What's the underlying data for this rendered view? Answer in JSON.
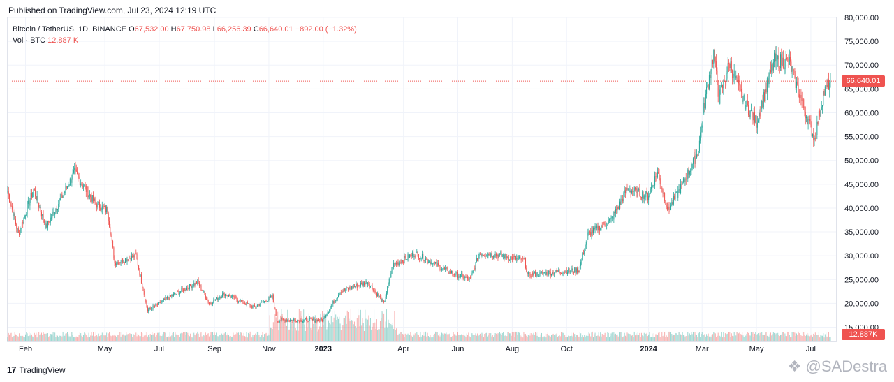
{
  "header": {
    "published": "Published on TradingView.com, Jul 23, 2024 12:19 UTC"
  },
  "legend": {
    "symbol": "Bitcoin / TetherUS, 1D, BINANCE",
    "open_label": "O",
    "open": "67,532.00",
    "high_label": "H",
    "high": "67,750.98",
    "low_label": "L",
    "low": "66,256.39",
    "close_label": "C",
    "close": "66,640.01",
    "change": "−892.00 (−1.32%)",
    "vol_label": "Vol · BTC",
    "vol_value": "12.887 K"
  },
  "price_tag": "66,640.01",
  "volume_tag": "12.887K",
  "footer": {
    "brand": "TradingView",
    "watermark": "@SADestra"
  },
  "colors": {
    "up": "#26a69a",
    "down": "#ef5350",
    "grid": "#f0f3fa",
    "text": "#131722"
  },
  "chart_data": {
    "type": "candlestick",
    "y_axis": {
      "min": 12000,
      "max": 80000,
      "ticks": [
        15000,
        20000,
        25000,
        30000,
        35000,
        40000,
        45000,
        50000,
        55000,
        60000,
        65000,
        70000,
        75000,
        80000
      ],
      "tick_labels": [
        "15,000.00",
        "20,000.00",
        "25,000.00",
        "30,000.00",
        "35,000.00",
        "40,000.00",
        "45,000.00",
        "50,000.00",
        "55,000.00",
        "60,000.00",
        "65,000.00",
        "70,000.00",
        "75,000.00",
        "80,000.00"
      ]
    },
    "x_axis": {
      "labels": [
        {
          "text": "Feb",
          "date": "2022-02-01",
          "bold": false
        },
        {
          "text": "May",
          "date": "2022-05-01",
          "bold": false
        },
        {
          "text": "Jul",
          "date": "2022-07-01",
          "bold": false
        },
        {
          "text": "Sep",
          "date": "2022-09-01",
          "bold": false
        },
        {
          "text": "Nov",
          "date": "2022-11-01",
          "bold": false
        },
        {
          "text": "2023",
          "date": "2023-01-01",
          "bold": true
        },
        {
          "text": "Apr",
          "date": "2023-04-01",
          "bold": false
        },
        {
          "text": "Jun",
          "date": "2023-06-01",
          "bold": false
        },
        {
          "text": "Aug",
          "date": "2023-08-01",
          "bold": false
        },
        {
          "text": "Oct",
          "date": "2023-10-01",
          "bold": false
        },
        {
          "text": "2024",
          "date": "2024-01-01",
          "bold": true
        },
        {
          "text": "Mar",
          "date": "2024-03-01",
          "bold": false
        },
        {
          "text": "May",
          "date": "2024-05-01",
          "bold": false
        },
        {
          "text": "Jul",
          "date": "2024-07-01",
          "bold": false
        }
      ],
      "start": "2022-01-12",
      "end": "2024-07-23"
    },
    "last_price": 66640.01,
    "price_path": [
      {
        "date": "2022-01-12",
        "price": 43500
      },
      {
        "date": "2022-01-24",
        "price": 34500
      },
      {
        "date": "2022-02-10",
        "price": 44000
      },
      {
        "date": "2022-02-24",
        "price": 36000
      },
      {
        "date": "2022-03-28",
        "price": 47500
      },
      {
        "date": "2022-04-20",
        "price": 41000
      },
      {
        "date": "2022-05-04",
        "price": 39500
      },
      {
        "date": "2022-05-12",
        "price": 28500
      },
      {
        "date": "2022-06-05",
        "price": 30000
      },
      {
        "date": "2022-06-18",
        "price": 18500
      },
      {
        "date": "2022-07-10",
        "price": 21000
      },
      {
        "date": "2022-08-13",
        "price": 24500
      },
      {
        "date": "2022-08-26",
        "price": 20000
      },
      {
        "date": "2022-09-12",
        "price": 22000
      },
      {
        "date": "2022-10-15",
        "price": 19200
      },
      {
        "date": "2022-11-05",
        "price": 21300
      },
      {
        "date": "2022-11-10",
        "price": 16500
      },
      {
        "date": "2022-12-31",
        "price": 16500
      },
      {
        "date": "2023-01-20",
        "price": 22500
      },
      {
        "date": "2023-02-20",
        "price": 24500
      },
      {
        "date": "2023-03-10",
        "price": 20000
      },
      {
        "date": "2023-03-20",
        "price": 28000
      },
      {
        "date": "2023-04-14",
        "price": 30500
      },
      {
        "date": "2023-05-20",
        "price": 26800
      },
      {
        "date": "2023-06-15",
        "price": 25000
      },
      {
        "date": "2023-06-25",
        "price": 30500
      },
      {
        "date": "2023-07-15",
        "price": 30200
      },
      {
        "date": "2023-08-15",
        "price": 29000
      },
      {
        "date": "2023-08-18",
        "price": 26000
      },
      {
        "date": "2023-09-15",
        "price": 26500
      },
      {
        "date": "2023-10-15",
        "price": 27000
      },
      {
        "date": "2023-10-25",
        "price": 34500
      },
      {
        "date": "2023-11-20",
        "price": 37500
      },
      {
        "date": "2023-12-08",
        "price": 44000
      },
      {
        "date": "2023-12-31",
        "price": 42500
      },
      {
        "date": "2024-01-11",
        "price": 47500
      },
      {
        "date": "2024-01-23",
        "price": 39500
      },
      {
        "date": "2024-02-08",
        "price": 45000
      },
      {
        "date": "2024-02-25",
        "price": 51500
      },
      {
        "date": "2024-03-05",
        "price": 63500
      },
      {
        "date": "2024-03-14",
        "price": 72500
      },
      {
        "date": "2024-03-20",
        "price": 63000
      },
      {
        "date": "2024-04-01",
        "price": 70500
      },
      {
        "date": "2024-04-15",
        "price": 63000
      },
      {
        "date": "2024-05-01",
        "price": 58000
      },
      {
        "date": "2024-05-21",
        "price": 71000
      },
      {
        "date": "2024-06-07",
        "price": 70500
      },
      {
        "date": "2024-06-25",
        "price": 60000
      },
      {
        "date": "2024-07-05",
        "price": 54500
      },
      {
        "date": "2024-07-15",
        "price": 64000
      },
      {
        "date": "2024-07-23",
        "price": 66640
      }
    ]
  }
}
